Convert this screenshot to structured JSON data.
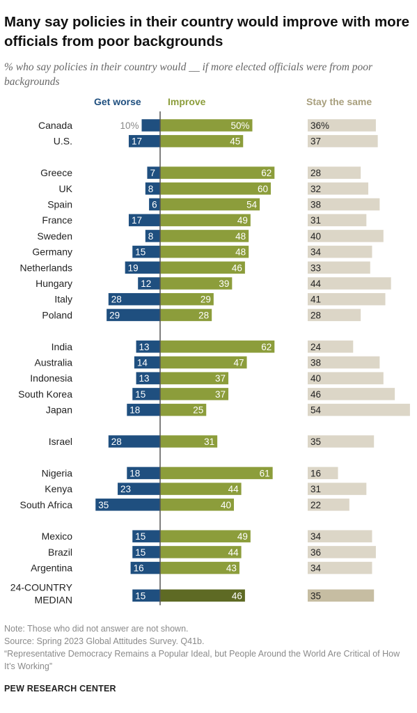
{
  "header": {
    "title": "Many say policies in their country would improve with more officials from poor backgrounds",
    "subtitle": "% who say policies in their country would __ if more elected officials were from poor backgrounds"
  },
  "columns": {
    "worse": "Get worse",
    "improve": "Improve",
    "same": "Stay the same"
  },
  "colors": {
    "worse": "#1f4f7f",
    "improve": "#8c9d3b",
    "same": "#dcd6c7",
    "median_improve": "#5e6a24",
    "median_same": "#c6bda2",
    "axis": "#555555",
    "worse_head": "#1f4f7f",
    "improve_head": "#8c9d3b",
    "same_head": "#a89f7d"
  },
  "chart_data": {
    "type": "bar",
    "categories": [
      "Canada",
      "U.S.",
      "Greece",
      "UK",
      "Spain",
      "France",
      "Sweden",
      "Germany",
      "Netherlands",
      "Hungary",
      "Italy",
      "Poland",
      "India",
      "Australia",
      "Indonesia",
      "South Korea",
      "Japan",
      "Israel",
      "Nigeria",
      "Kenya",
      "South Africa",
      "Mexico",
      "Brazil",
      "Argentina",
      "24-COUNTRY MEDIAN"
    ],
    "series": [
      {
        "name": "Get worse",
        "values": [
          10,
          17,
          7,
          8,
          6,
          17,
          8,
          15,
          19,
          12,
          28,
          29,
          13,
          14,
          13,
          15,
          18,
          28,
          18,
          23,
          35,
          15,
          15,
          16,
          15
        ]
      },
      {
        "name": "Improve",
        "values": [
          50,
          45,
          62,
          60,
          54,
          49,
          48,
          48,
          46,
          39,
          29,
          28,
          62,
          47,
          37,
          37,
          25,
          31,
          61,
          44,
          40,
          49,
          44,
          43,
          46
        ]
      },
      {
        "name": "Stay the same",
        "values": [
          36,
          37,
          28,
          32,
          38,
          31,
          40,
          34,
          33,
          44,
          41,
          28,
          24,
          38,
          40,
          46,
          54,
          35,
          16,
          31,
          22,
          34,
          36,
          34,
          35
        ]
      }
    ],
    "first_row_labels": {
      "worse": "10%",
      "improve": "50%",
      "same": "36%"
    },
    "group_breaks_after": [
      "U.S.",
      "Poland",
      "Japan",
      "Israel",
      "South Africa",
      "Argentina"
    ],
    "median_lines": [
      "24-COUNTRY",
      "MEDIAN"
    ]
  },
  "footer": {
    "note": "Note: Those who did not answer are not shown.",
    "source": "Source: Spring 2023 Global Attitudes Survey. Q41b.",
    "report": "“Representative Democracy Remains a Popular Ideal, but People Around the World Are Critical of How It’s Working”",
    "brand": "PEW RESEARCH CENTER"
  }
}
